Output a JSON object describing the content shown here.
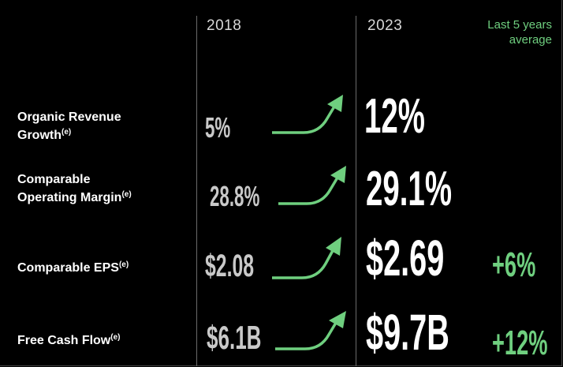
{
  "headers": {
    "year_start": "2018",
    "year_end": "2023",
    "avg_line1": "Last 5 years",
    "avg_line2": "average"
  },
  "rows": [
    {
      "label_line1": "Organic Revenue",
      "label_line2": "Growth",
      "sup": "(e)",
      "v2018": "5%",
      "v2023": "12%",
      "avg": ""
    },
    {
      "label_line1": "Comparable",
      "label_line2": "Operating Margin",
      "sup": "(e)",
      "v2018": "28.8%",
      "v2023": "29.1%",
      "avg": ""
    },
    {
      "label_line1": "Comparable EPS",
      "label_line2": "",
      "sup": "(e)",
      "v2018": "$2.08",
      "v2023": "$2.69",
      "avg": "+6%"
    },
    {
      "label_line1": "Free Cash Flow",
      "label_line2": "",
      "sup": "(e)",
      "v2018": "$6.1B",
      "v2023": "$9.7B",
      "avg": "+12%"
    }
  ],
  "colors": {
    "background": "#000000",
    "accent_green": "#6fcf7f",
    "value_2018": "#c9c9c9",
    "value_2023": "#ffffff"
  }
}
